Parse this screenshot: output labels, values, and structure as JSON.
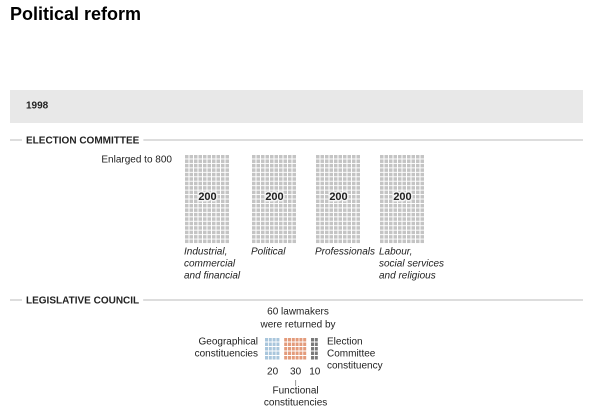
{
  "title": "Political reform",
  "year": "1998",
  "election_committee": {
    "heading": "ELECTION COMMITTEE",
    "note": "Enlarged to 800",
    "color": "#c4c4c4",
    "groups": [
      {
        "value": 200,
        "label": [
          "Industrial,",
          "commercial",
          "and financial"
        ]
      },
      {
        "value": 200,
        "label": [
          "Political"
        ]
      },
      {
        "value": 200,
        "label": [
          "Professionals"
        ]
      },
      {
        "value": 200,
        "label": [
          "Labour,",
          "social services",
          "and religious"
        ]
      }
    ]
  },
  "legislative_council": {
    "heading": "LEGISLATIVE COUNCIL",
    "note": [
      "60 lawmakers",
      "were returned by"
    ],
    "groups": [
      {
        "value": 20,
        "color": "#a9c6dc",
        "label": [
          "Geographical",
          "constituencies"
        ]
      },
      {
        "value": 30,
        "color": "#e39b7b",
        "label": [
          "Functional",
          "constituencies"
        ]
      },
      {
        "value": 10,
        "color": "#7a7a7a",
        "label": [
          "Election",
          "Committee",
          "constituency"
        ]
      }
    ]
  }
}
